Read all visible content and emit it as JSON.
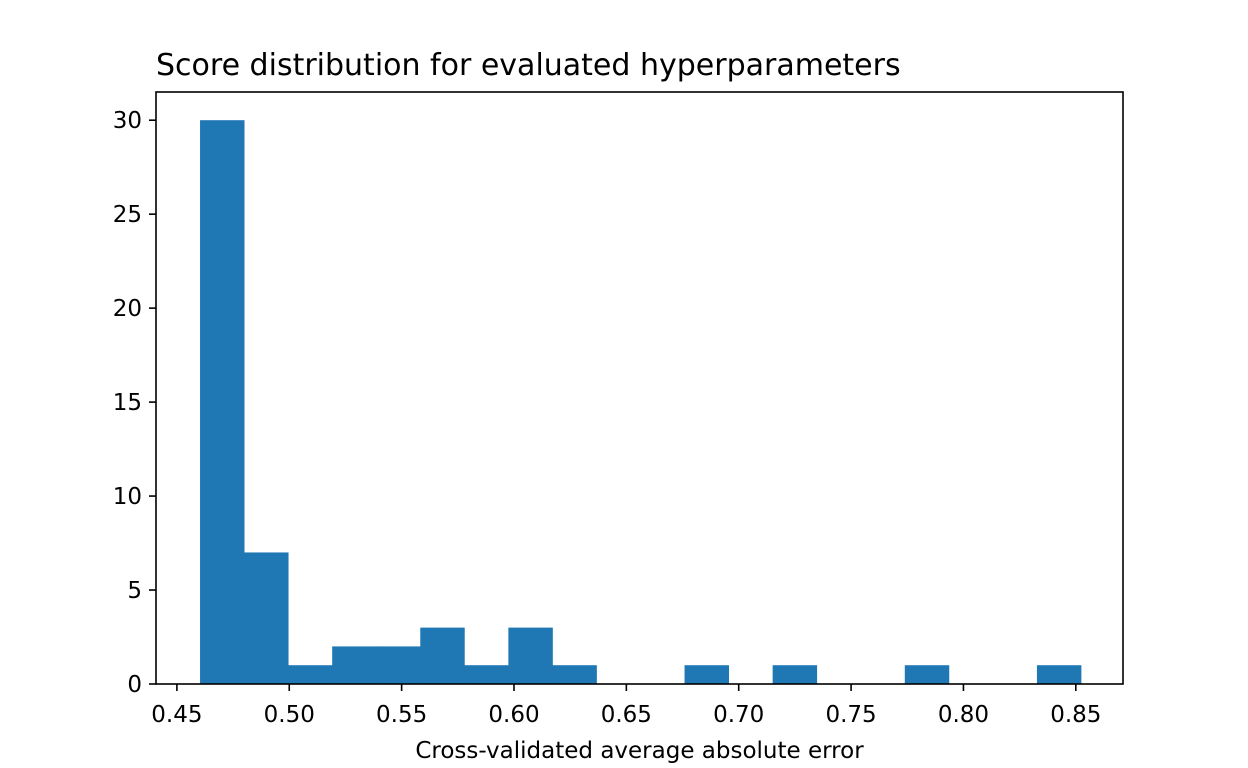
{
  "chart_data": {
    "type": "bar",
    "title": "Score distribution for evaluated hyperparameters",
    "xlabel": "Cross-validated average absolute error",
    "ylabel": "",
    "xlim": [
      0.4407,
      0.871
    ],
    "ylim": [
      0,
      31.5
    ],
    "x_ticks": [
      "0.45",
      "0.50",
      "0.55",
      "0.60",
      "0.65",
      "0.70",
      "0.75",
      "0.80",
      "0.85"
    ],
    "x_tick_values": [
      0.45,
      0.5,
      0.55,
      0.6,
      0.65,
      0.7,
      0.75,
      0.8,
      0.85
    ],
    "y_ticks": [
      "0",
      "5",
      "10",
      "15",
      "20",
      "25",
      "30"
    ],
    "y_tick_values": [
      0,
      5,
      10,
      15,
      20,
      25,
      30
    ],
    "bins": [
      {
        "start": 0.4603,
        "end": 0.4799,
        "count": 30
      },
      {
        "start": 0.4799,
        "end": 0.4995,
        "count": 7
      },
      {
        "start": 0.4995,
        "end": 0.5191,
        "count": 1
      },
      {
        "start": 0.5191,
        "end": 0.5387,
        "count": 2
      },
      {
        "start": 0.5387,
        "end": 0.5583,
        "count": 2
      },
      {
        "start": 0.5583,
        "end": 0.5779,
        "count": 3
      },
      {
        "start": 0.5779,
        "end": 0.5975,
        "count": 1
      },
      {
        "start": 0.5975,
        "end": 0.6171,
        "count": 3
      },
      {
        "start": 0.6171,
        "end": 0.6367,
        "count": 1
      },
      {
        "start": 0.6367,
        "end": 0.6563,
        "count": 0
      },
      {
        "start": 0.6563,
        "end": 0.6759,
        "count": 0
      },
      {
        "start": 0.6759,
        "end": 0.6955,
        "count": 1
      },
      {
        "start": 0.6955,
        "end": 0.7151,
        "count": 0
      },
      {
        "start": 0.7151,
        "end": 0.7347,
        "count": 1
      },
      {
        "start": 0.7347,
        "end": 0.7543,
        "count": 0
      },
      {
        "start": 0.7543,
        "end": 0.7739,
        "count": 0
      },
      {
        "start": 0.7739,
        "end": 0.7935,
        "count": 1
      },
      {
        "start": 0.7935,
        "end": 0.8131,
        "count": 0
      },
      {
        "start": 0.8131,
        "end": 0.8327,
        "count": 0
      },
      {
        "start": 0.8327,
        "end": 0.8523,
        "count": 1
      }
    ],
    "bar_color": "#1f77b4",
    "grid": false
  }
}
